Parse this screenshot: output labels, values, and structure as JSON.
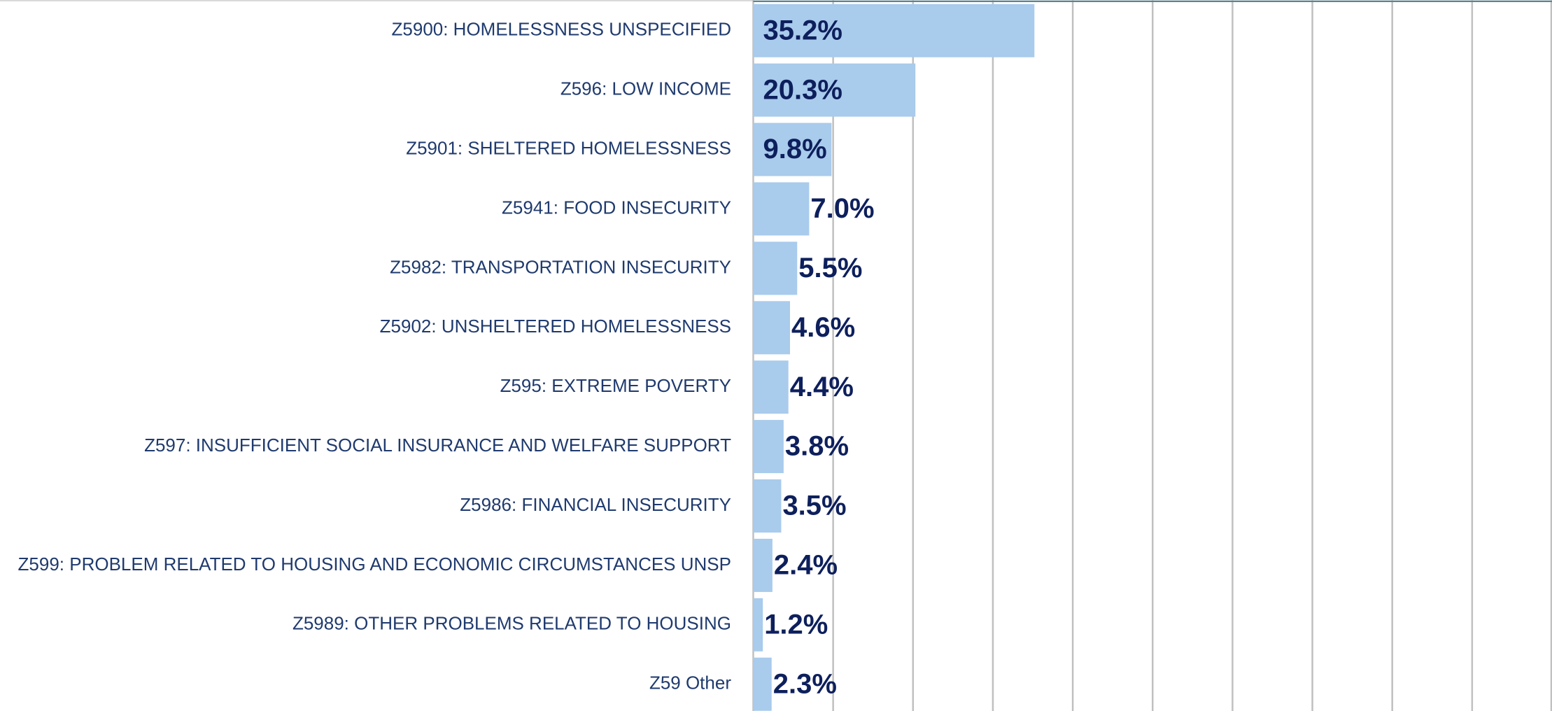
{
  "chart_data": {
    "type": "bar",
    "orientation": "horizontal",
    "categories": [
      "Z5900: HOMELESSNESS UNSPECIFIED",
      "Z596: LOW INCOME",
      "Z5901: SHELTERED HOMELESSNESS",
      "Z5941: FOOD INSECURITY",
      "Z5982: TRANSPORTATION INSECURITY",
      "Z5902: UNSHELTERED HOMELESSNESS",
      "Z595: EXTREME POVERTY",
      "Z597: INSUFFICIENT SOCIAL INSURANCE AND WELFARE SUPPORT",
      "Z5986: FINANCIAL INSECURITY",
      "Z599: PROBLEM RELATED TO HOUSING AND ECONOMIC CIRCUMSTANCES UNSP",
      "Z5989: OTHER PROBLEMS RELATED TO HOUSING",
      "Z59 Other"
    ],
    "values": [
      35.2,
      20.3,
      9.8,
      7.0,
      5.5,
      4.6,
      4.4,
      3.8,
      3.5,
      2.4,
      1.2,
      2.3
    ],
    "value_labels": [
      "35.2%",
      "20.3%",
      "9.8%",
      "7.0%",
      "5.5%",
      "4.6%",
      "4.4%",
      "3.8%",
      "3.5%",
      "2.4%",
      "1.2%",
      "2.3%"
    ],
    "color": "#a9cbec",
    "xlim": [
      0,
      100
    ],
    "xticks": [
      0,
      10,
      20,
      30,
      40,
      50,
      60,
      70,
      80,
      90,
      100
    ],
    "grid": true
  }
}
